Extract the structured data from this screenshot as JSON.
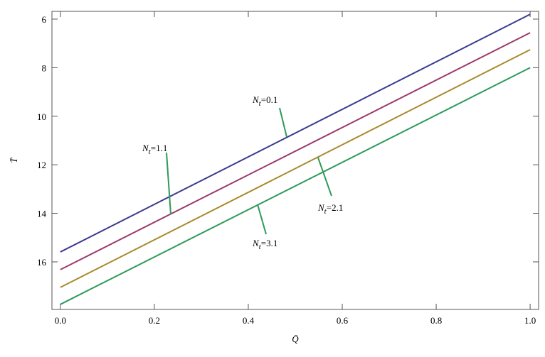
{
  "chart_data": {
    "type": "line",
    "x_label": "Q̄",
    "y_label": "T̄",
    "x": [
      0,
      1
    ],
    "series": [
      {
        "color": "#3b3b8f",
        "values": [
          15.59,
          5.8
        ]
      },
      {
        "color": "#9b3a6b",
        "values": [
          16.32,
          6.56
        ]
      },
      {
        "color": "#a88b2c",
        "values": [
          17.05,
          7.26
        ]
      },
      {
        "color": "#2e9a5a",
        "values": [
          17.75,
          8.0
        ]
      }
    ],
    "annotations": [
      {
        "symbol": "N",
        "subscript": "t",
        "text": "=0.1"
      },
      {
        "symbol": "N",
        "subscript": "t",
        "text": "=1.1"
      },
      {
        "symbol": "N",
        "subscript": "t",
        "text": "=2.1"
      },
      {
        "symbol": "N",
        "subscript": "t",
        "text": "=3.1"
      }
    ],
    "annotation_color": "#2e9a5a",
    "xlim": [
      -0.018,
      1.018
    ],
    "ylim": [
      5.68,
      17.96
    ],
    "y_reversed": true,
    "xticks": [
      {
        "value": 0,
        "label": "0.0"
      },
      {
        "value": 0.2,
        "label": "0.2"
      },
      {
        "value": 0.4,
        "label": "0.4"
      },
      {
        "value": 0.6,
        "label": "0.6"
      },
      {
        "value": 0.8,
        "label": "0.8"
      },
      {
        "value": 1,
        "label": "1.0"
      }
    ],
    "yticks": [
      6,
      8,
      10,
      12,
      14,
      16
    ]
  }
}
